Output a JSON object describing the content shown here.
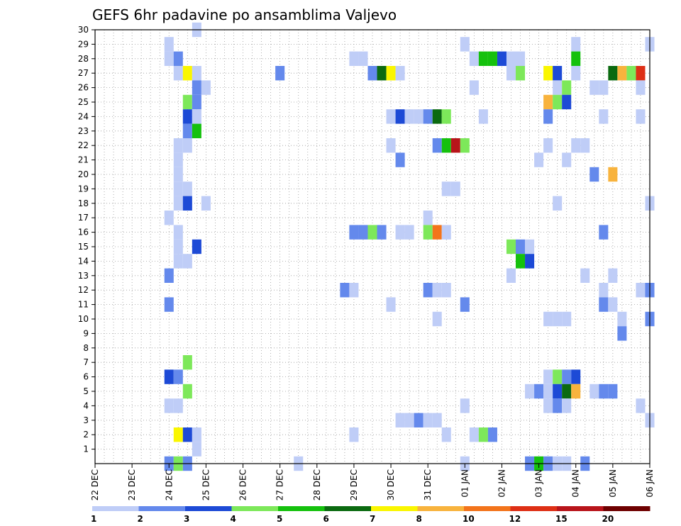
{
  "chart_data": {
    "type": "heatmap",
    "title": "GEFS 6hr padavine po ansamblima Valjevo",
    "xlabel": "",
    "ylabel": "",
    "x_tick_labels": [
      "22 DEC",
      "23 DEC",
      "24 DEC",
      "25 DEC",
      "26 DEC",
      "27 DEC",
      "28 DEC",
      "29 DEC",
      "30 DEC",
      "31 DEC",
      "01 JAN",
      "02 JAN",
      "03 JAN",
      "04 JAN",
      "05 JAN",
      "06 JAN"
    ],
    "x_step_unit": "6hr",
    "x_range": [
      0,
      60
    ],
    "y_tick_labels": [
      "1",
      "2",
      "3",
      "4",
      "5",
      "6",
      "7",
      "8",
      "9",
      "10",
      "11",
      "12",
      "13",
      "14",
      "15",
      "16",
      "17",
      "18",
      "19",
      "20",
      "21",
      "22",
      "23",
      "24",
      "25",
      "26",
      "27",
      "28",
      "29",
      "30"
    ],
    "y_range": [
      0,
      30
    ],
    "grid": true,
    "legend": {
      "placement": "bottom",
      "labels": [
        "1",
        "2",
        "3",
        "4",
        "5",
        "6",
        "7",
        "8",
        "10",
        "12",
        "15",
        "20"
      ],
      "colors": [
        "#bfcdf7",
        "#6489ec",
        "#1d4ad6",
        "#7de85a",
        "#15c10d",
        "#0b6a10",
        "#faf600",
        "#f8b33d",
        "#f3741b",
        "#de2f15",
        "#b8141a",
        "#6e0000"
      ]
    },
    "cells": [
      {
        "m": 30,
        "t": [
          [
            11,
            0
          ]
        ]
      },
      {
        "m": 29,
        "t": [
          [
            8,
            0
          ],
          [
            40,
            0
          ],
          [
            52,
            0
          ],
          [
            60,
            0
          ]
        ]
      },
      {
        "m": 28,
        "t": [
          [
            8,
            0
          ],
          [
            9,
            1
          ],
          [
            28,
            0
          ],
          [
            29,
            0
          ],
          [
            41,
            0
          ],
          [
            42,
            4
          ],
          [
            43,
            4
          ],
          [
            44,
            2
          ],
          [
            45,
            0
          ],
          [
            46,
            0
          ],
          [
            52,
            4
          ]
        ]
      },
      {
        "m": 27,
        "t": [
          [
            9,
            0
          ],
          [
            10,
            6
          ],
          [
            11,
            0
          ],
          [
            20,
            1
          ],
          [
            30,
            1
          ],
          [
            31,
            5
          ],
          [
            32,
            6
          ],
          [
            33,
            0
          ],
          [
            45,
            0
          ],
          [
            46,
            3
          ],
          [
            49,
            6
          ],
          [
            50,
            2
          ],
          [
            52,
            0
          ],
          [
            56,
            5
          ],
          [
            57,
            7
          ],
          [
            58,
            3
          ],
          [
            59,
            9
          ]
        ]
      },
      {
        "m": 26,
        "t": [
          [
            11,
            1
          ],
          [
            12,
            0
          ],
          [
            41,
            0
          ],
          [
            50,
            0
          ],
          [
            51,
            3
          ],
          [
            54,
            0
          ],
          [
            55,
            0
          ],
          [
            59,
            0
          ]
        ]
      },
      {
        "m": 25,
        "t": [
          [
            10,
            3
          ],
          [
            11,
            1
          ],
          [
            49,
            7
          ],
          [
            50,
            3
          ],
          [
            51,
            2
          ]
        ]
      },
      {
        "m": 24,
        "t": [
          [
            10,
            2
          ],
          [
            11,
            0
          ],
          [
            32,
            0
          ],
          [
            33,
            2
          ],
          [
            34,
            0
          ],
          [
            35,
            0
          ],
          [
            36,
            1
          ],
          [
            37,
            5
          ],
          [
            38,
            3
          ],
          [
            42,
            0
          ],
          [
            49,
            1
          ],
          [
            55,
            0
          ],
          [
            59,
            0
          ]
        ]
      },
      {
        "m": 23,
        "t": [
          [
            10,
            1
          ],
          [
            11,
            4
          ]
        ]
      },
      {
        "m": 22,
        "t": [
          [
            9,
            0
          ],
          [
            10,
            0
          ],
          [
            32,
            0
          ],
          [
            37,
            1
          ],
          [
            38,
            4
          ],
          [
            39,
            10
          ],
          [
            40,
            3
          ],
          [
            49,
            0
          ],
          [
            52,
            0
          ],
          [
            53,
            0
          ]
        ]
      },
      {
        "m": 21,
        "t": [
          [
            9,
            0
          ],
          [
            33,
            1
          ],
          [
            48,
            0
          ],
          [
            51,
            0
          ]
        ]
      },
      {
        "m": 20,
        "t": [
          [
            9,
            0
          ],
          [
            54,
            1
          ],
          [
            56,
            7
          ]
        ]
      },
      {
        "m": 19,
        "t": [
          [
            9,
            0
          ],
          [
            10,
            0
          ],
          [
            38,
            0
          ],
          [
            39,
            0
          ]
        ]
      },
      {
        "m": 18,
        "t": [
          [
            9,
            0
          ],
          [
            10,
            2
          ],
          [
            12,
            0
          ],
          [
            50,
            0
          ],
          [
            60,
            0
          ]
        ]
      },
      {
        "m": 17,
        "t": [
          [
            8,
            0
          ],
          [
            36,
            0
          ]
        ]
      },
      {
        "m": 16,
        "t": [
          [
            9,
            0
          ],
          [
            28,
            1
          ],
          [
            29,
            1
          ],
          [
            30,
            3
          ],
          [
            31,
            1
          ],
          [
            33,
            0
          ],
          [
            34,
            0
          ],
          [
            36,
            3
          ],
          [
            37,
            8
          ],
          [
            38,
            0
          ],
          [
            55,
            1
          ]
        ]
      },
      {
        "m": 15,
        "t": [
          [
            9,
            0
          ],
          [
            11,
            2
          ],
          [
            45,
            3
          ],
          [
            46,
            1
          ],
          [
            47,
            0
          ]
        ]
      },
      {
        "m": 14,
        "t": [
          [
            9,
            0
          ],
          [
            10,
            0
          ],
          [
            46,
            4
          ],
          [
            47,
            2
          ]
        ]
      },
      {
        "m": 13,
        "t": [
          [
            8,
            1
          ],
          [
            45,
            0
          ],
          [
            53,
            0
          ],
          [
            56,
            0
          ]
        ]
      },
      {
        "m": 12,
        "t": [
          [
            27,
            1
          ],
          [
            28,
            0
          ],
          [
            36,
            1
          ],
          [
            37,
            0
          ],
          [
            38,
            0
          ],
          [
            55,
            0
          ],
          [
            59,
            0
          ],
          [
            60,
            1
          ]
        ]
      },
      {
        "m": 11,
        "t": [
          [
            8,
            1
          ],
          [
            32,
            0
          ],
          [
            40,
            1
          ],
          [
            55,
            1
          ],
          [
            56,
            0
          ]
        ]
      },
      {
        "m": 10,
        "t": [
          [
            37,
            0
          ],
          [
            49,
            0
          ],
          [
            50,
            0
          ],
          [
            51,
            0
          ],
          [
            57,
            0
          ],
          [
            60,
            1
          ]
        ]
      },
      {
        "m": 9,
        "t": [
          [
            57,
            1
          ]
        ]
      },
      {
        "m": 7,
        "t": [
          [
            10,
            3
          ]
        ]
      },
      {
        "m": 6,
        "t": [
          [
            8,
            2
          ],
          [
            9,
            1
          ],
          [
            49,
            0
          ],
          [
            50,
            3
          ],
          [
            51,
            1
          ],
          [
            52,
            2
          ]
        ]
      },
      {
        "m": 5,
        "t": [
          [
            10,
            3
          ],
          [
            47,
            0
          ],
          [
            48,
            1
          ],
          [
            49,
            0
          ],
          [
            50,
            2
          ],
          [
            51,
            5
          ],
          [
            52,
            7
          ],
          [
            54,
            0
          ],
          [
            55,
            1
          ],
          [
            56,
            1
          ]
        ]
      },
      {
        "m": 4,
        "t": [
          [
            8,
            0
          ],
          [
            9,
            0
          ],
          [
            40,
            0
          ],
          [
            49,
            0
          ],
          [
            50,
            1
          ],
          [
            51,
            0
          ],
          [
            59,
            0
          ]
        ]
      },
      {
        "m": 3,
        "t": [
          [
            33,
            0
          ],
          [
            34,
            0
          ],
          [
            35,
            1
          ],
          [
            36,
            0
          ],
          [
            37,
            0
          ],
          [
            60,
            0
          ]
        ]
      },
      {
        "m": 2,
        "t": [
          [
            9,
            6
          ],
          [
            10,
            2
          ],
          [
            11,
            0
          ],
          [
            28,
            0
          ],
          [
            38,
            0
          ],
          [
            41,
            0
          ],
          [
            42,
            3
          ],
          [
            43,
            1
          ]
        ]
      },
      {
        "m": 1,
        "t": [
          [
            11,
            0
          ]
        ]
      },
      {
        "m": 0,
        "t": [
          [
            8,
            1
          ],
          [
            9,
            3
          ],
          [
            10,
            1
          ],
          [
            22,
            0
          ],
          [
            40,
            0
          ],
          [
            47,
            1
          ],
          [
            48,
            4
          ],
          [
            49,
            1
          ],
          [
            50,
            0
          ],
          [
            51,
            0
          ],
          [
            53,
            1
          ]
        ]
      }
    ]
  }
}
